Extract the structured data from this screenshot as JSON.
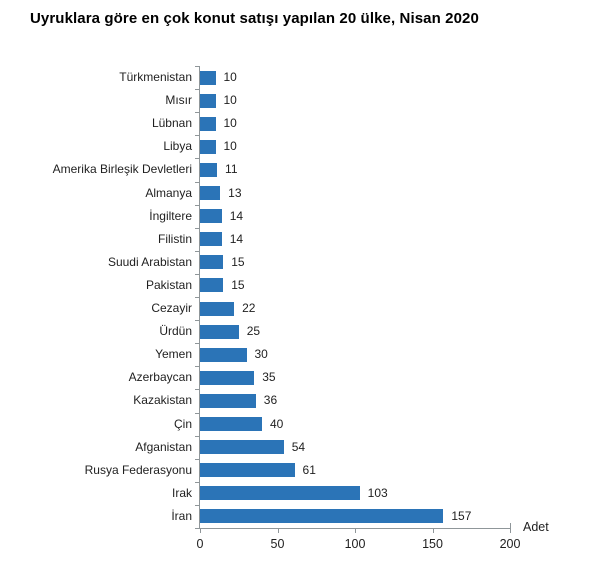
{
  "chart_data": {
    "type": "bar",
    "orientation": "horizontal",
    "title": "Uyruklara göre en çok konut satışı yapılan 20 ülke, Nisan 2020",
    "categories": [
      "Türkmenistan",
      "Mısır",
      "Lübnan",
      "Libya",
      "Amerika Birleşik Devletleri",
      "Almanya",
      "İngiltere",
      "Filistin",
      "Suudi Arabistan",
      "Pakistan",
      "Cezayir",
      "Ürdün",
      "Yemen",
      "Azerbaycan",
      "Kazakistan",
      "Çin",
      "Afganistan",
      "Rusya Federasyonu",
      "Irak",
      "İran"
    ],
    "values": [
      10,
      10,
      10,
      10,
      11,
      13,
      14,
      14,
      15,
      15,
      22,
      25,
      30,
      35,
      36,
      40,
      54,
      61,
      103,
      157
    ],
    "xlabel": "Adet",
    "xticks": [
      0,
      50,
      100,
      150,
      200
    ],
    "xlim": [
      0,
      200
    ],
    "grid": false,
    "legend": false,
    "value_labels": true,
    "bar_color": "#2B74B7",
    "axis_color": "#8F9699",
    "text_color": "#1F1F1F",
    "title_color": "#000000"
  }
}
